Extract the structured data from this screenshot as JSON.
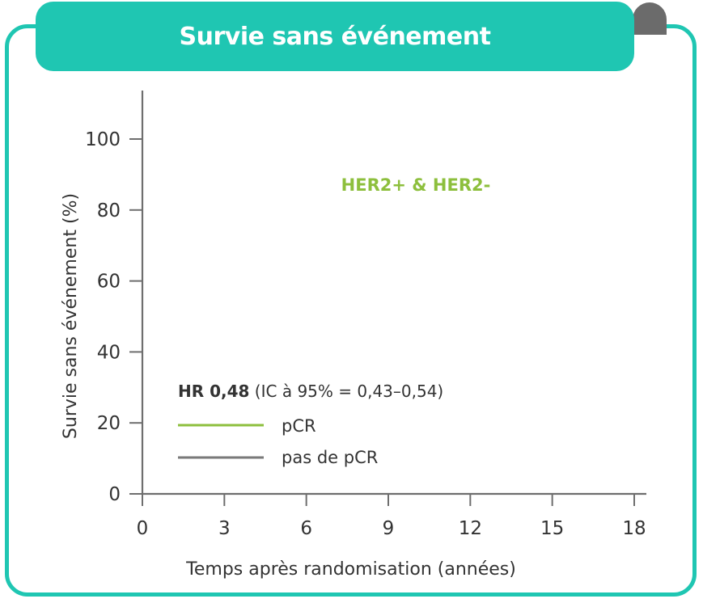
{
  "title": "Survie sans événement",
  "colors": {
    "accent": "#1fc6b2",
    "fold": "#6b6b6b",
    "pcr": "#8dbf3d",
    "no_pcr": "#7a7a7a",
    "axis": "#6e6e6e"
  },
  "chart_data": {
    "type": "line",
    "xlabel": "Temps après randomisation (années)",
    "ylabel": "Survie sans événement (%)",
    "xlim": [
      0,
      18
    ],
    "ylim": [
      0,
      100
    ],
    "x_ticks": [
      0,
      3,
      6,
      9,
      12,
      15,
      18
    ],
    "y_ticks": [
      0,
      20,
      40,
      60,
      80,
      100
    ],
    "annotation": "HER2+ & HER2-",
    "hr": {
      "bold": "HR 0,48",
      "rest": " (IC à 95% = 0,43–0,54)"
    },
    "grid": false,
    "legend_position": "bottom-left",
    "series": [
      {
        "name": "pCR",
        "color": "#8dbf3d",
        "values": []
      },
      {
        "name": "pas de pCR",
        "color": "#7a7a7a",
        "values": []
      }
    ]
  }
}
